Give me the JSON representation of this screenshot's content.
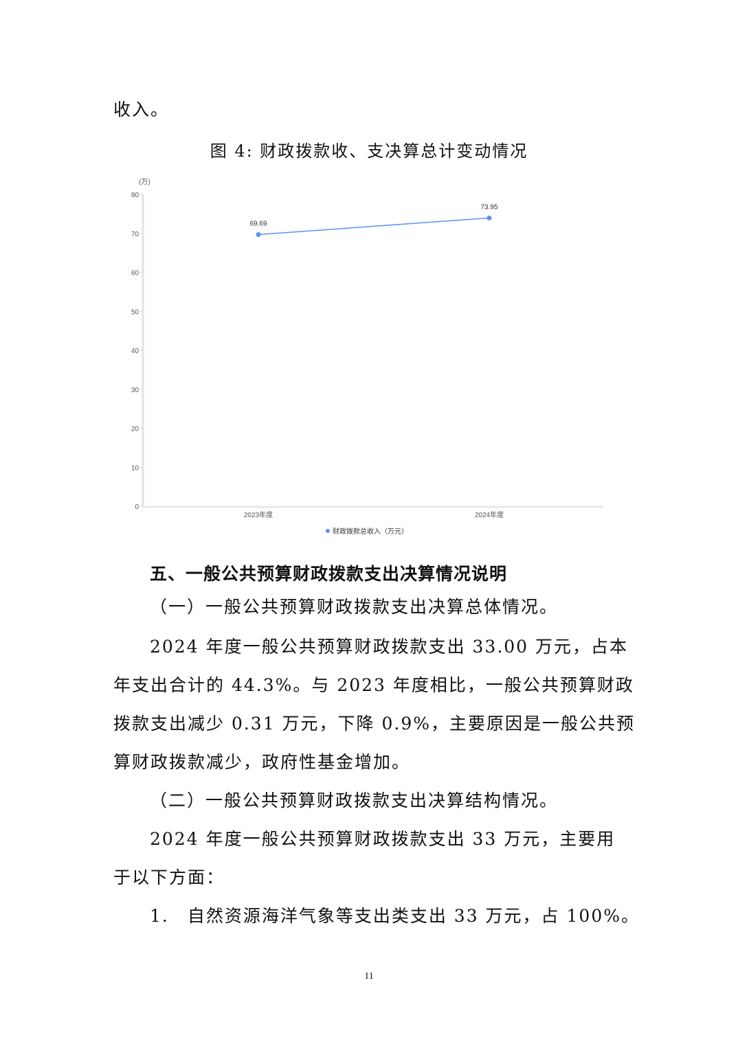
{
  "text": {
    "lead_line": "收入。",
    "caption": "图 4: 财政拨款收、支决算总计变动情况",
    "section_heading": "五、一般公共预算财政拨款支出决算情况说明",
    "sub1": "（一）一般公共预算财政拨款支出决算总体情况。",
    "para1": [
      "2024 年度一般公共预算财政拨款支出 33.00 万元，占本",
      "年支出合计的 44.3%。与 2023 年度相比，一般公共预算财政",
      "拨款支出减少 0.31 万元，下降 0.9%，主要原因是一般公共预",
      "算财政拨款减少，政府性基金增加。"
    ],
    "sub2": "（二）一般公共预算财政拨款支出决算结构情况。",
    "para2": [
      "2024 年度一般公共预算财政拨款支出 33 万元，主要用",
      "于以下方面："
    ],
    "item1": "1.　自然资源海洋气象等支出类支出 33 万元，占 100%。",
    "page_number": "11"
  },
  "chart_data": {
    "type": "line",
    "unit_label": "(万)",
    "categories": [
      "2023年度",
      "2024年度"
    ],
    "series": [
      {
        "name": "财政拨款总收入（万元）",
        "values": [
          69.69,
          73.95
        ],
        "labels": [
          "69.69",
          "73.95"
        ],
        "color": "#5b8ff9"
      }
    ],
    "ylim": [
      0,
      80
    ],
    "yticks": [
      "0",
      "10",
      "20",
      "30",
      "40",
      "50",
      "60",
      "70",
      "80"
    ],
    "grid": false,
    "legend_position": "bottom"
  }
}
